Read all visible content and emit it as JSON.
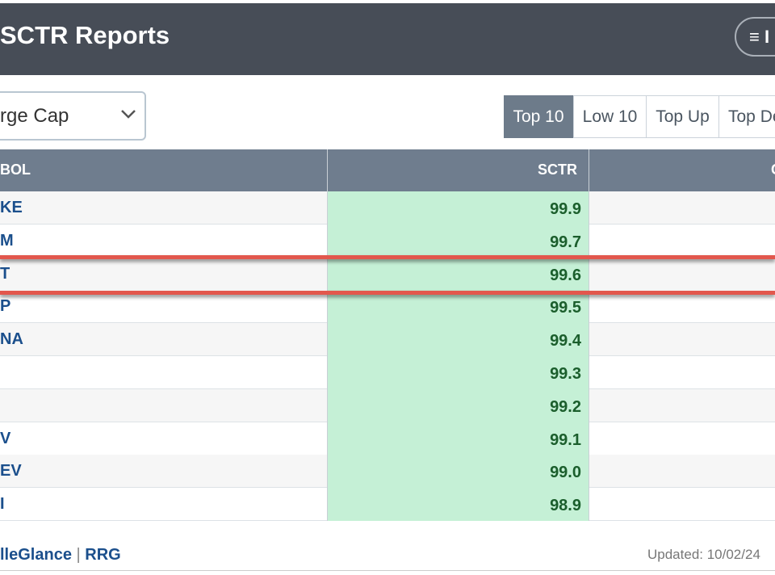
{
  "header": {
    "title": "SCTR Reports",
    "menu_label": "≡ I"
  },
  "controls": {
    "dropdown": "rge Cap",
    "tabs": [
      "Top 10",
      "Low 10",
      "Top Up",
      "Top De"
    ]
  },
  "table": {
    "columns": [
      "BOL",
      "SCTR",
      "C"
    ],
    "rows": [
      {
        "symbol": "KE",
        "sctr": "99.9"
      },
      {
        "symbol": "M",
        "sctr": "99.7"
      },
      {
        "symbol": "T",
        "sctr": "99.6"
      },
      {
        "symbol": "P",
        "sctr": "99.5"
      },
      {
        "symbol": "NA",
        "sctr": "99.4"
      },
      {
        "sctr": "99.3"
      },
      {
        "sctr": "99.2"
      },
      {
        "symbol": "V",
        "sctr": "99.1"
      },
      {
        "symbol": "EV",
        "sctr": "99.0"
      },
      {
        "symbol": "I",
        "sctr": "98.9"
      }
    ]
  },
  "footer": {
    "links": [
      "lleGlance",
      "RRG"
    ],
    "separator": "|",
    "updated": "Updated: 10/02/24"
  }
}
